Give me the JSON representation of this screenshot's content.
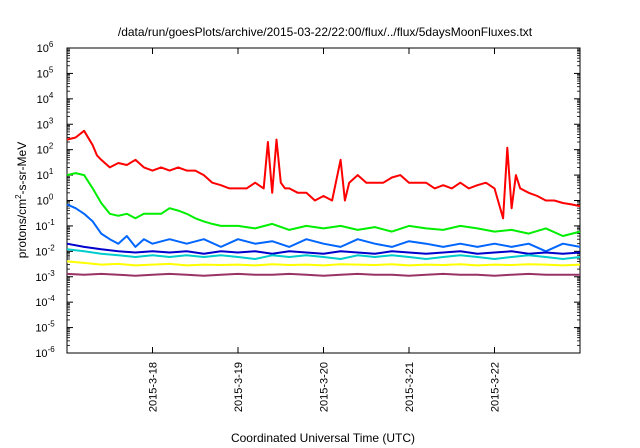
{
  "chart_data": {
    "type": "line",
    "title": "/data/run/goesPlots/archive/2015-03-22/22:00/flux/../flux/5daysMoonFluxes.txt",
    "xlabel": "Coordinated Universal Time (UTC)",
    "ylabel": {
      "prefix": "protons/cm",
      "sup": "2",
      "suffix": "-s-sr-MeV"
    },
    "y_scale": "log",
    "ylim": [
      1e-06,
      1000000.0
    ],
    "y_ticks": [
      {
        "value": 1e-06,
        "base": "10",
        "exp": "-6"
      },
      {
        "value": 1e-05,
        "base": "10",
        "exp": "-5"
      },
      {
        "value": 0.0001,
        "base": "10",
        "exp": "-4"
      },
      {
        "value": 0.001,
        "base": "10",
        "exp": "-3"
      },
      {
        "value": 0.01,
        "base": "10",
        "exp": "-2"
      },
      {
        "value": 0.1,
        "base": "10",
        "exp": "-1"
      },
      {
        "value": 1,
        "base": "10",
        "exp": "0"
      },
      {
        "value": 10,
        "base": "10",
        "exp": "1"
      },
      {
        "value": 100,
        "base": "10",
        "exp": "2"
      },
      {
        "value": 1000,
        "base": "10",
        "exp": "3"
      },
      {
        "value": 10000,
        "base": "10",
        "exp": "4"
      },
      {
        "value": 100000,
        "base": "10",
        "exp": "5"
      },
      {
        "value": 1000000,
        "base": "10",
        "exp": "6"
      }
    ],
    "xlim": [
      "2015-03-17",
      "2015-03-23"
    ],
    "x_ticks": [
      "2015-3-18",
      "2015-3-19",
      "2015-3-20",
      "2015-3-21",
      "2015-3-22"
    ],
    "grid": false,
    "legend": "none",
    "series": [
      {
        "color": "#ff0000",
        "x": [
          17.0,
          17.1,
          17.2,
          17.3,
          17.35,
          17.4,
          17.5,
          17.6,
          17.7,
          17.8,
          17.9,
          18.0,
          18.1,
          18.2,
          18.3,
          18.4,
          18.5,
          18.6,
          18.7,
          18.8,
          18.9,
          19.0,
          19.1,
          19.2,
          19.3,
          19.35,
          19.4,
          19.45,
          19.5,
          19.55,
          19.6,
          19.7,
          19.8,
          19.9,
          20.0,
          20.1,
          20.2,
          20.25,
          20.3,
          20.4,
          20.5,
          20.6,
          20.7,
          20.8,
          20.9,
          21.0,
          21.1,
          21.2,
          21.3,
          21.4,
          21.5,
          21.6,
          21.7,
          21.8,
          21.9,
          22.0,
          22.1,
          22.15,
          22.2,
          22.25,
          22.3,
          22.4,
          22.5,
          22.6,
          22.7,
          22.8,
          22.9,
          23.0
        ],
        "y": [
          250,
          300,
          550,
          150,
          60,
          40,
          20,
          30,
          25,
          40,
          20,
          15,
          20,
          15,
          20,
          15,
          15,
          10,
          5,
          4,
          3,
          3,
          3,
          5,
          3,
          200,
          2,
          250,
          5,
          3,
          3,
          2,
          2,
          1,
          1.5,
          1,
          40,
          1,
          5,
          10,
          5,
          5,
          5,
          8,
          10,
          5,
          5,
          5,
          3,
          4,
          3,
          5,
          3,
          4,
          5,
          3,
          0.2,
          120,
          0.5,
          10,
          3,
          2,
          1.5,
          1,
          1,
          0.8,
          0.7,
          0.6
        ]
      },
      {
        "color": "#00ee00",
        "x": [
          17.0,
          17.1,
          17.2,
          17.3,
          17.4,
          17.5,
          17.6,
          17.7,
          17.8,
          17.9,
          18.0,
          18.1,
          18.2,
          18.3,
          18.4,
          18.5,
          18.6,
          18.7,
          18.8,
          18.9,
          19.0,
          19.2,
          19.4,
          19.6,
          19.8,
          20.0,
          20.2,
          20.4,
          20.6,
          20.8,
          21.0,
          21.2,
          21.4,
          21.6,
          21.8,
          22.0,
          22.2,
          22.4,
          22.6,
          22.8,
          23.0
        ],
        "y": [
          10,
          12,
          10,
          3,
          0.8,
          0.3,
          0.25,
          0.3,
          0.2,
          0.3,
          0.3,
          0.3,
          0.5,
          0.4,
          0.3,
          0.2,
          0.15,
          0.12,
          0.1,
          0.1,
          0.1,
          0.08,
          0.12,
          0.07,
          0.1,
          0.08,
          0.1,
          0.07,
          0.09,
          0.06,
          0.1,
          0.08,
          0.07,
          0.1,
          0.08,
          0.06,
          0.07,
          0.05,
          0.08,
          0.04,
          0.06
        ]
      },
      {
        "color": "#0066ff",
        "x": [
          17.0,
          17.1,
          17.2,
          17.3,
          17.4,
          17.5,
          17.6,
          17.7,
          17.8,
          17.9,
          18.0,
          18.2,
          18.4,
          18.6,
          18.8,
          19.0,
          19.2,
          19.4,
          19.6,
          19.8,
          20.0,
          20.2,
          20.4,
          20.6,
          20.8,
          21.0,
          21.2,
          21.4,
          21.6,
          21.8,
          22.0,
          22.2,
          22.4,
          22.6,
          22.8,
          23.0
        ],
        "y": [
          0.7,
          0.5,
          0.3,
          0.15,
          0.05,
          0.03,
          0.02,
          0.04,
          0.015,
          0.03,
          0.02,
          0.03,
          0.02,
          0.03,
          0.015,
          0.03,
          0.02,
          0.025,
          0.015,
          0.03,
          0.02,
          0.015,
          0.03,
          0.02,
          0.015,
          0.025,
          0.02,
          0.015,
          0.02,
          0.015,
          0.02,
          0.015,
          0.02,
          0.01,
          0.02,
          0.015
        ]
      },
      {
        "color": "#0000cc",
        "x": [
          17.0,
          17.2,
          17.4,
          17.6,
          17.8,
          18.0,
          18.2,
          18.4,
          18.6,
          18.8,
          19.0,
          19.2,
          19.4,
          19.6,
          19.8,
          20.0,
          20.2,
          20.4,
          20.6,
          20.8,
          21.0,
          21.2,
          21.4,
          21.6,
          21.8,
          22.0,
          22.2,
          22.4,
          22.6,
          22.8,
          23.0
        ],
        "y": [
          0.02,
          0.015,
          0.012,
          0.01,
          0.009,
          0.01,
          0.009,
          0.01,
          0.008,
          0.01,
          0.009,
          0.01,
          0.008,
          0.01,
          0.009,
          0.008,
          0.01,
          0.009,
          0.008,
          0.01,
          0.009,
          0.008,
          0.009,
          0.01,
          0.008,
          0.009,
          0.01,
          0.008,
          0.009,
          0.008,
          0.009
        ]
      },
      {
        "color": "#00cccc",
        "x": [
          17.0,
          17.2,
          17.4,
          17.6,
          17.8,
          18.0,
          18.2,
          18.4,
          18.6,
          18.8,
          19.0,
          19.2,
          19.4,
          19.6,
          19.8,
          20.0,
          20.2,
          20.4,
          20.6,
          20.8,
          21.0,
          21.2,
          21.4,
          21.6,
          21.8,
          22.0,
          22.2,
          22.4,
          22.6,
          22.8,
          23.0
        ],
        "y": [
          0.012,
          0.01,
          0.008,
          0.007,
          0.006,
          0.007,
          0.006,
          0.007,
          0.006,
          0.007,
          0.006,
          0.005,
          0.007,
          0.006,
          0.007,
          0.006,
          0.005,
          0.007,
          0.006,
          0.007,
          0.006,
          0.005,
          0.006,
          0.007,
          0.006,
          0.005,
          0.006,
          0.007,
          0.006,
          0.005,
          0.006
        ]
      },
      {
        "color": "#ffff00",
        "x": [
          17.0,
          17.2,
          17.4,
          17.6,
          17.8,
          18.0,
          18.2,
          18.4,
          18.6,
          18.8,
          19.0,
          19.2,
          19.4,
          19.6,
          19.8,
          20.0,
          20.2,
          20.4,
          20.6,
          20.8,
          21.0,
          21.2,
          21.4,
          21.6,
          21.8,
          22.0,
          22.2,
          22.4,
          22.6,
          22.8,
          23.0
        ],
        "y": [
          0.004,
          0.0035,
          0.003,
          0.0032,
          0.0028,
          0.003,
          0.0032,
          0.0028,
          0.003,
          0.0029,
          0.003,
          0.0028,
          0.0031,
          0.0029,
          0.003,
          0.0028,
          0.0031,
          0.003,
          0.0029,
          0.0031,
          0.0028,
          0.003,
          0.0029,
          0.0031,
          0.0028,
          0.003,
          0.0029,
          0.0031,
          0.003,
          0.0028,
          0.003
        ]
      },
      {
        "color": "#993366",
        "x": [
          17.0,
          17.2,
          17.4,
          17.6,
          17.8,
          18.0,
          18.2,
          18.4,
          18.6,
          18.8,
          19.0,
          19.2,
          19.4,
          19.6,
          19.8,
          20.0,
          20.2,
          20.4,
          20.6,
          20.8,
          21.0,
          21.2,
          21.4,
          21.6,
          21.8,
          22.0,
          22.2,
          22.4,
          22.6,
          22.8,
          23.0
        ],
        "y": [
          0.0013,
          0.0012,
          0.0013,
          0.0012,
          0.0011,
          0.0012,
          0.0013,
          0.0012,
          0.0011,
          0.0012,
          0.0013,
          0.0012,
          0.0012,
          0.0013,
          0.0012,
          0.0011,
          0.0012,
          0.0013,
          0.0012,
          0.0012,
          0.0011,
          0.0012,
          0.0013,
          0.0012,
          0.0012,
          0.0011,
          0.0012,
          0.0013,
          0.0012,
          0.0012,
          0.0012
        ]
      }
    ]
  }
}
